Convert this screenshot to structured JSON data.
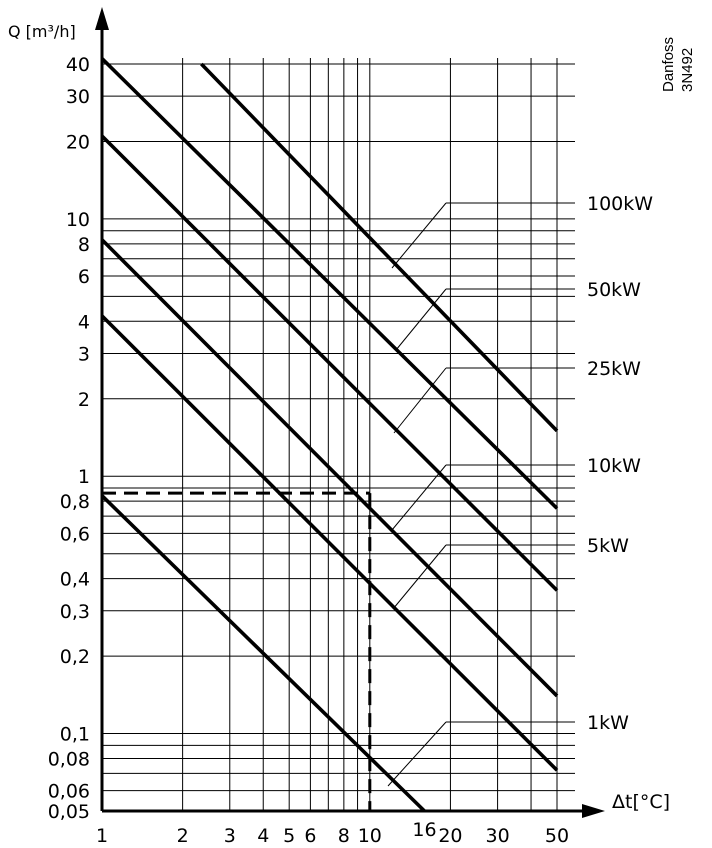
{
  "chart_data": {
    "type": "line",
    "x_scale": "log",
    "y_scale": "log",
    "xlim": [
      1,
      50
    ],
    "ylim": [
      0.05,
      40
    ],
    "grid": true,
    "ylabel": "Q [m³/h]",
    "xlabel": "Δt[°C]",
    "x_ticks": [
      {
        "value": 1,
        "label": "1"
      },
      {
        "value": 2,
        "label": "2"
      },
      {
        "value": 3,
        "label": "3"
      },
      {
        "value": 4,
        "label": "4"
      },
      {
        "value": 5,
        "label": "5"
      },
      {
        "value": 6,
        "label": "6"
      },
      {
        "value": 8,
        "label": "8"
      },
      {
        "value": 10,
        "label": "10"
      },
      {
        "value": 16,
        "label": "16"
      },
      {
        "value": 20,
        "label": "20"
      },
      {
        "value": 30,
        "label": "30"
      },
      {
        "value": 50,
        "label": "50"
      }
    ],
    "y_ticks": [
      {
        "value": 0.05,
        "label": "0,05"
      },
      {
        "value": 0.06,
        "label": "0,06"
      },
      {
        "value": 0.08,
        "label": "0,08"
      },
      {
        "value": 0.1,
        "label": "0,1"
      },
      {
        "value": 0.2,
        "label": "0,2"
      },
      {
        "value": 0.3,
        "label": "0,3"
      },
      {
        "value": 0.4,
        "label": "0,4"
      },
      {
        "value": 0.6,
        "label": "0,6"
      },
      {
        "value": 0.8,
        "label": "0,8"
      },
      {
        "value": 1,
        "label": "1"
      },
      {
        "value": 2,
        "label": "2"
      },
      {
        "value": 3,
        "label": "3"
      },
      {
        "value": 4,
        "label": "4"
      },
      {
        "value": 6,
        "label": "6"
      },
      {
        "value": 8,
        "label": "8"
      },
      {
        "value": 10,
        "label": "10"
      },
      {
        "value": 20,
        "label": "20"
      },
      {
        "value": 30,
        "label": "30"
      },
      {
        "value": 40,
        "label": "40"
      }
    ],
    "series": [
      {
        "name": "100kW",
        "x": [
          2.35,
          50
        ],
        "y": [
          40,
          1.5
        ]
      },
      {
        "name": "50kW",
        "x": [
          1,
          50
        ],
        "y": [
          42,
          0.75
        ]
      },
      {
        "name": "25kW",
        "x": [
          1,
          50
        ],
        "y": [
          21,
          0.36
        ]
      },
      {
        "name": "10kW",
        "x": [
          1,
          50
        ],
        "y": [
          8.3,
          0.14
        ]
      },
      {
        "name": "5kW",
        "x": [
          1,
          50
        ],
        "y": [
          4.2,
          0.072
        ]
      },
      {
        "name": "1kW",
        "x": [
          1,
          16
        ],
        "y": [
          0.84,
          0.05
        ]
      }
    ],
    "annotation": {
      "x": 10,
      "y": 0.86,
      "style": "dashed"
    },
    "brand": [
      "Danfoss",
      "3N492"
    ]
  }
}
